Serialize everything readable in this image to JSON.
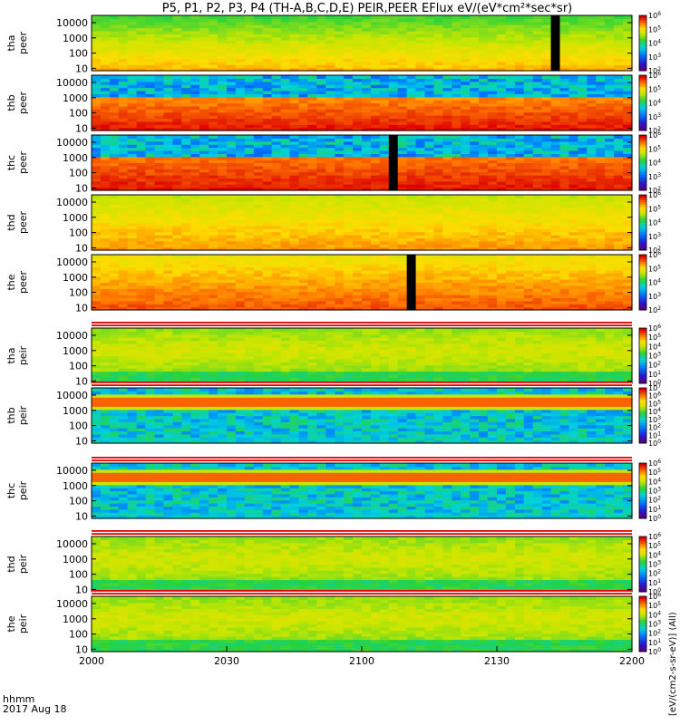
{
  "title": "P5, P1, P2, P3, P4 (TH-A,B,C,D,E) PEIR,PEER EFlux eV/(eV*cm²*sec*sr)",
  "time_axis": {
    "label_line1": "hhmm",
    "label_line2": "2017 Aug 18",
    "ticks": [
      "2000",
      "2030",
      "2100",
      "2130",
      "2200"
    ]
  },
  "colorbar_unit_label": "[eV/(cm2-s-sr-eV)] (All)",
  "chart_data": {
    "type": "heatmap",
    "x_range": [
      "2000",
      "2200"
    ],
    "y_scale": "log",
    "y_range": [
      7,
      30000
    ],
    "y_ticks": [
      "10000",
      "1000",
      "100",
      "10"
    ],
    "panels": [
      {
        "label1": "tha",
        "label2": "peer",
        "cb_min": 2,
        "cb_max": 6,
        "pattern": "peer",
        "lo": 0.62,
        "hi": 0.82,
        "noise_top": false,
        "gaps": [
          {
            "t0": 0.849,
            "t1": 0.86
          }
        ]
      },
      {
        "label1": "thb",
        "label2": "peer",
        "cb_min": 2,
        "cb_max": 6,
        "pattern": "peer",
        "lo": 0.82,
        "hi": 0.98,
        "noise_top": true,
        "gaps": []
      },
      {
        "label1": "thc",
        "label2": "peer",
        "cb_min": 2,
        "cb_max": 6,
        "pattern": "peer",
        "lo": 0.85,
        "hi": 0.98,
        "noise_top": true,
        "gaps": [
          {
            "t0": 0.543,
            "t1": 0.562
          }
        ]
      },
      {
        "label1": "thd",
        "label2": "peer",
        "cb_min": 2,
        "cb_max": 6,
        "pattern": "peer",
        "lo": 0.72,
        "hi": 0.85,
        "noise_top": false,
        "gaps": []
      },
      {
        "label1": "the",
        "label2": "peer",
        "cb_min": 2,
        "cb_max": 6,
        "pattern": "peer",
        "lo": 0.78,
        "hi": 0.92,
        "noise_top": false,
        "gaps": [
          {
            "t0": 0.578,
            "t1": 0.603
          }
        ]
      },
      {
        "label1": "tha",
        "label2": "peir",
        "cb_min": 0,
        "cb_max": 6,
        "pattern": "peir",
        "lo": 0.55,
        "hi": 0.75,
        "noise_top": false,
        "gaps": []
      },
      {
        "label1": "thb",
        "label2": "peir",
        "cb_min": 0,
        "cb_max": 7,
        "pattern": "band",
        "lo": 0.45,
        "hi": 0.85,
        "noise_top": false,
        "gaps": []
      },
      {
        "label1": "thc",
        "label2": "peir",
        "cb_min": 0,
        "cb_max": 6,
        "pattern": "band",
        "lo": 0.45,
        "hi": 0.85,
        "noise_top": false,
        "gaps": []
      },
      {
        "label1": "thd",
        "label2": "peir",
        "cb_min": 0,
        "cb_max": 6,
        "pattern": "peir",
        "lo": 0.55,
        "hi": 0.75,
        "noise_top": false,
        "gaps": []
      },
      {
        "label1": "the",
        "label2": "peir",
        "cb_min": 0,
        "cb_max": 6,
        "pattern": "peir",
        "lo": 0.55,
        "hi": 0.75,
        "noise_top": false,
        "gaps": []
      }
    ]
  }
}
